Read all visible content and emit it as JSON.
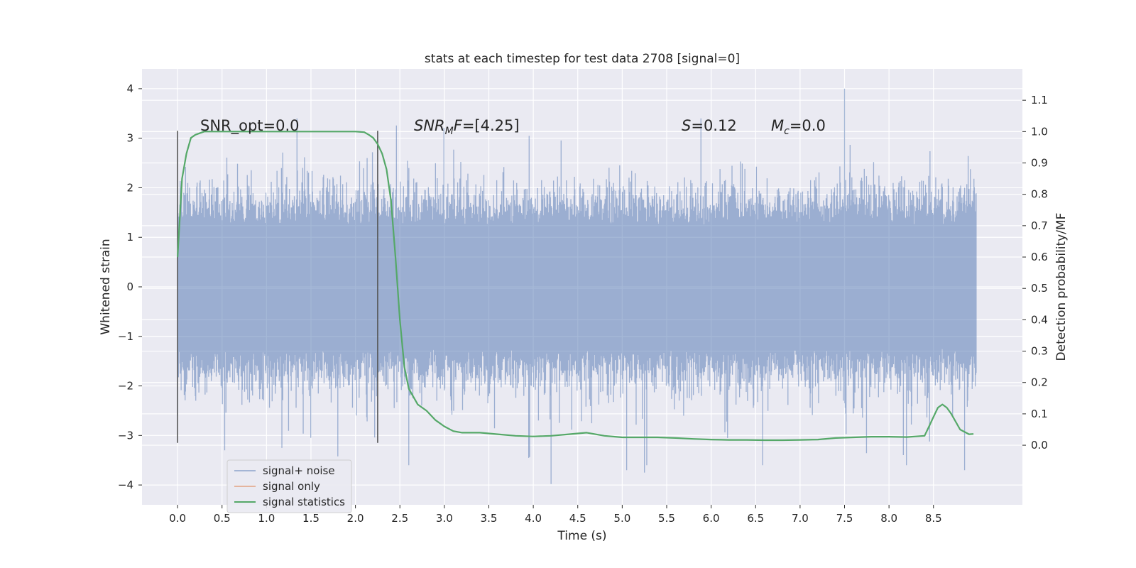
{
  "chart_data": {
    "type": "line",
    "title": "stats at each timestep for test data 2708 [signal=0]",
    "xlabel": "Time (s)",
    "ylabel": "Whitened strain",
    "y2label": "Detection probability/MF",
    "xlim": [
      -0.4,
      9.5
    ],
    "ylim": [
      -4.4,
      4.4
    ],
    "y2lim": [
      -0.19,
      1.2
    ],
    "x_ticks": [
      0.0,
      0.5,
      1.0,
      1.5,
      2.0,
      2.5,
      3.0,
      3.5,
      4.0,
      4.5,
      5.0,
      5.5,
      6.0,
      6.5,
      7.0,
      7.5,
      8.0,
      8.5
    ],
    "x_tick_labels": [
      "0.0",
      "0.5",
      "1.0",
      "1.5",
      "2.0",
      "2.5",
      "3.0",
      "3.5",
      "4.0",
      "4.5",
      "5.0",
      "5.5",
      "6.0",
      "6.5",
      "7.0",
      "7.5",
      "8.0",
      "8.5"
    ],
    "y_ticks": [
      4,
      3,
      2,
      1,
      0,
      -1,
      -2,
      -3,
      -4
    ],
    "y_tick_labels": [
      "4",
      "3",
      "2",
      "1",
      "0",
      "−1",
      "−2",
      "−3",
      "−4"
    ],
    "y2_ticks": [
      1.1,
      1.0,
      0.9,
      0.8,
      0.7,
      0.6,
      0.5,
      0.4,
      0.3,
      0.2,
      0.1,
      0.0
    ],
    "y2_tick_labels": [
      "1.1",
      "1.0",
      "0.9",
      "0.8",
      "0.7",
      "0.6",
      "0.5",
      "0.4",
      "0.3",
      "0.2",
      "0.1",
      "0.0"
    ],
    "grid": true,
    "legend_placement": "lower-left",
    "series": [
      {
        "name": "signal+ noise",
        "color": "#4c72b0",
        "axis": "left",
        "t_range": [
          0.0,
          8.98
        ],
        "typical_amplitude": 1.25,
        "peak_positive": 4.0,
        "peak_negative": -3.98
      },
      {
        "name": "signal only",
        "color": "#dd8452",
        "axis": "left",
        "values": []
      },
      {
        "name": "signal statistics",
        "color": "#55a868",
        "axis": "right",
        "x": [
          0.0,
          0.05,
          0.1,
          0.15,
          0.2,
          0.3,
          0.5,
          1.0,
          1.5,
          2.0,
          2.1,
          2.15,
          2.2,
          2.25,
          2.3,
          2.35,
          2.4,
          2.45,
          2.5,
          2.55,
          2.6,
          2.7,
          2.8,
          2.9,
          3.0,
          3.1,
          3.2,
          3.4,
          3.6,
          3.8,
          4.0,
          4.2,
          4.4,
          4.6,
          4.8,
          5.0,
          5.2,
          5.4,
          5.6,
          5.8,
          6.0,
          6.2,
          6.4,
          6.6,
          6.8,
          7.0,
          7.2,
          7.4,
          7.6,
          7.8,
          8.0,
          8.2,
          8.3,
          8.4,
          8.45,
          8.5,
          8.55,
          8.6,
          8.65,
          8.7,
          8.8,
          8.9,
          8.95
        ],
        "values": [
          0.6,
          0.85,
          0.93,
          0.98,
          0.99,
          1.0,
          1.0,
          1.0,
          1.0,
          1.0,
          0.998,
          0.99,
          0.98,
          0.96,
          0.93,
          0.88,
          0.78,
          0.6,
          0.4,
          0.25,
          0.18,
          0.13,
          0.11,
          0.08,
          0.06,
          0.045,
          0.04,
          0.04,
          0.035,
          0.03,
          0.028,
          0.03,
          0.035,
          0.04,
          0.03,
          0.025,
          0.025,
          0.025,
          0.023,
          0.02,
          0.018,
          0.017,
          0.017,
          0.016,
          0.016,
          0.017,
          0.018,
          0.023,
          0.025,
          0.027,
          0.027,
          0.026,
          0.028,
          0.03,
          0.06,
          0.09,
          0.12,
          0.13,
          0.12,
          0.1,
          0.05,
          0.035,
          0.036
        ]
      }
    ],
    "vlines": [
      {
        "x": 0.0,
        "y_range": [
          -3.15,
          3.15
        ],
        "color": "#555555"
      },
      {
        "x": 2.25,
        "y_range": [
          -3.15,
          3.15
        ],
        "color": "#555555"
      }
    ],
    "annotations": [
      {
        "id": "snr-opt",
        "x": 0.2,
        "y": 3.3,
        "text": "SNR_opt=0.0"
      },
      {
        "id": "snr-mf",
        "x": 2.6,
        "y": 3.3,
        "prefix": "SNR",
        "sub": "M",
        "mid": "F",
        "rest": "=[4.25]"
      },
      {
        "id": "s-val",
        "x": 5.6,
        "y": 3.3,
        "prefix": "S",
        "rest": "=0.12"
      },
      {
        "id": "mc-val",
        "x": 6.6,
        "y": 3.3,
        "prefix": "M",
        "sub": "c",
        "rest": "=0.0"
      }
    ]
  }
}
